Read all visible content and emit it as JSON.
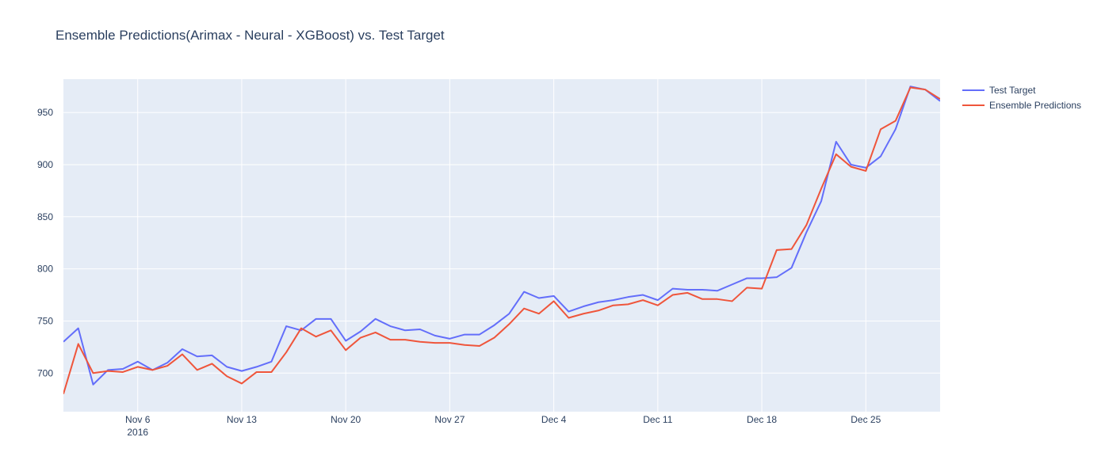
{
  "chart_data": {
    "type": "line",
    "title": "Ensemble Predictions(Arimax - Neural - XGBoost) vs. Test Target",
    "xlabel": "",
    "ylabel": "",
    "x_range": [
      "2016-11-01",
      "2016-12-30"
    ],
    "ylim": [
      663,
      982
    ],
    "y_ticks": [
      700,
      750,
      800,
      850,
      900,
      950
    ],
    "x_ticks": [
      {
        "date": "2016-11-06",
        "label": "Nov 6",
        "sublabel": "2016"
      },
      {
        "date": "2016-11-13",
        "label": "Nov 13"
      },
      {
        "date": "2016-11-20",
        "label": "Nov 20"
      },
      {
        "date": "2016-11-27",
        "label": "Nov 27"
      },
      {
        "date": "2016-12-04",
        "label": "Dec 4"
      },
      {
        "date": "2016-12-11",
        "label": "Dec 11"
      },
      {
        "date": "2016-12-18",
        "label": "Dec 18"
      },
      {
        "date": "2016-12-25",
        "label": "Dec 25"
      }
    ],
    "grid": true,
    "legend_position": "top-right",
    "x": [
      "2016-11-01",
      "2016-11-02",
      "2016-11-03",
      "2016-11-04",
      "2016-11-05",
      "2016-11-06",
      "2016-11-07",
      "2016-11-08",
      "2016-11-09",
      "2016-11-10",
      "2016-11-11",
      "2016-11-12",
      "2016-11-13",
      "2016-11-14",
      "2016-11-15",
      "2016-11-16",
      "2016-11-17",
      "2016-11-18",
      "2016-11-19",
      "2016-11-20",
      "2016-11-21",
      "2016-11-22",
      "2016-11-23",
      "2016-11-24",
      "2016-11-25",
      "2016-11-26",
      "2016-11-27",
      "2016-11-28",
      "2016-11-29",
      "2016-11-30",
      "2016-12-01",
      "2016-12-02",
      "2016-12-03",
      "2016-12-04",
      "2016-12-05",
      "2016-12-06",
      "2016-12-07",
      "2016-12-08",
      "2016-12-09",
      "2016-12-10",
      "2016-12-11",
      "2016-12-12",
      "2016-12-13",
      "2016-12-14",
      "2016-12-15",
      "2016-12-16",
      "2016-12-17",
      "2016-12-18",
      "2016-12-19",
      "2016-12-20",
      "2016-12-21",
      "2016-12-22",
      "2016-12-23",
      "2016-12-24",
      "2016-12-25",
      "2016-12-26",
      "2016-12-27",
      "2016-12-28",
      "2016-12-29",
      "2016-12-30"
    ],
    "series": [
      {
        "name": "Test Target",
        "color": "#636efa",
        "values": [
          730,
          743,
          689,
          703,
          704,
          711,
          703,
          710,
          723,
          716,
          717,
          706,
          702,
          706,
          711,
          745,
          741,
          752,
          752,
          731,
          740,
          752,
          745,
          741,
          742,
          736,
          733,
          737,
          737,
          746,
          757,
          778,
          772,
          774,
          759,
          764,
          768,
          770,
          773,
          775,
          770,
          781,
          780,
          780,
          779,
          785,
          791,
          791,
          792,
          801,
          835,
          865,
          922,
          900,
          897,
          908,
          934,
          975,
          972,
          961
        ],
        "line_width": 2
      },
      {
        "name": "Ensemble Predictions",
        "color": "#ef553b",
        "values": [
          680,
          728,
          700,
          702,
          701,
          706,
          703,
          707,
          718,
          703,
          709,
          697,
          690,
          701,
          701,
          720,
          743,
          735,
          741,
          722,
          734,
          739,
          732,
          732,
          730,
          729,
          729,
          727,
          726,
          734,
          747,
          762,
          757,
          769,
          753,
          757,
          760,
          765,
          766,
          770,
          765,
          775,
          777,
          771,
          771,
          769,
          782,
          781,
          818,
          819,
          842,
          877,
          910,
          898,
          894,
          934,
          942,
          974,
          972,
          963
        ],
        "line_width": 2
      }
    ]
  }
}
